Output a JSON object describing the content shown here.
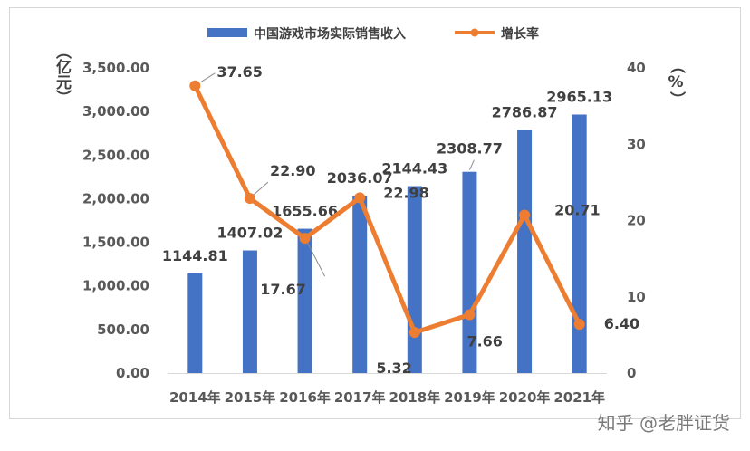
{
  "chart_data": {
    "type": "bar",
    "categories": [
      "2014年",
      "2015年",
      "2016年",
      "2017年",
      "2018年",
      "2019年",
      "2020年",
      "2021年"
    ],
    "series": [
      {
        "name": "中国游戏市场实际销售收入",
        "type": "bar",
        "axis": "left",
        "values": [
          1144.81,
          1407.02,
          1655.66,
          2036.07,
          2144.43,
          2308.77,
          2786.87,
          2965.13
        ],
        "color": "#4472C4"
      },
      {
        "name": "增长率",
        "type": "line",
        "axis": "right",
        "values": [
          37.65,
          22.9,
          17.67,
          22.98,
          5.32,
          7.66,
          20.71,
          6.4
        ],
        "color": "#ED7D31"
      }
    ],
    "bar_labels": [
      "1144.81",
      "1407.02",
      "1655.66",
      "2036.07",
      "2144.43",
      "2308.77",
      "2786.87",
      "2965.13"
    ],
    "line_labels": [
      "37.65",
      "22.90",
      "17.67",
      "22.98",
      "5.32",
      "7.66",
      "20.71",
      "6.40"
    ],
    "y_left": {
      "label": "（亿元）",
      "ticks": [
        "0.00",
        "500.00",
        "1,000.00",
        "1,500.00",
        "2,000.00",
        "2,500.00",
        "3,000.00",
        "3,500.00"
      ],
      "ylim": [
        0,
        3500
      ]
    },
    "y_right": {
      "label": "（%）",
      "ticks": [
        "0",
        "10",
        "20",
        "30",
        "40"
      ],
      "ylim": [
        0,
        40
      ]
    },
    "legend_position": "top"
  },
  "watermark": "知乎 @老胖证货"
}
